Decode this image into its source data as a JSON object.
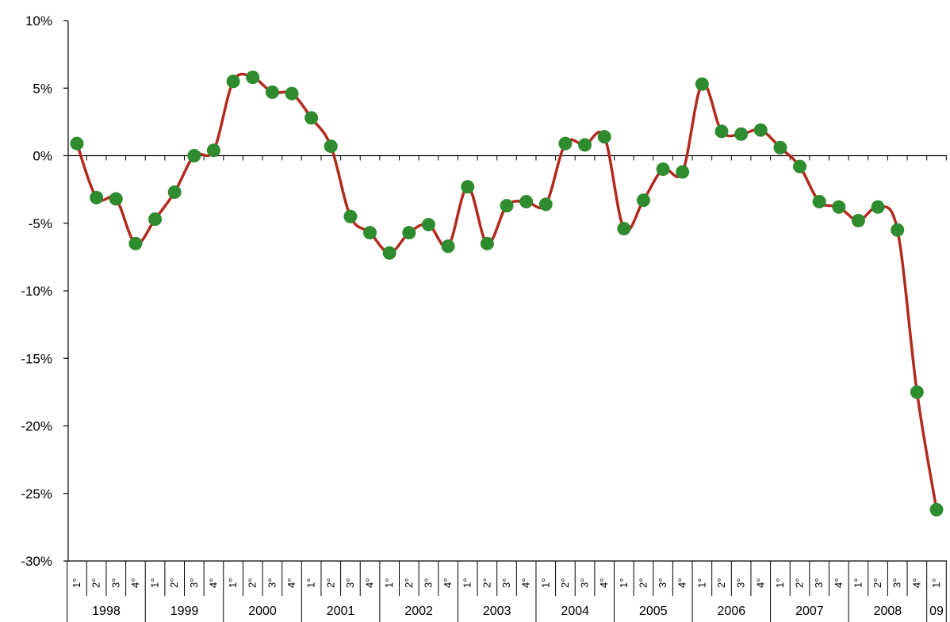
{
  "chart_data": {
    "type": "line",
    "title": "",
    "xlabel": "",
    "ylabel": "",
    "ylim": [
      -30,
      10
    ],
    "y_ticks": [
      "10%",
      "5%",
      "0%",
      "-5%",
      "-10%",
      "-15%",
      "-20%",
      "-25%",
      "-30%"
    ],
    "y_tick_values": [
      10,
      5,
      0,
      -5,
      -10,
      -15,
      -20,
      -25,
      -30
    ],
    "quarter_labels": [
      "1°",
      "2°",
      "3°",
      "4°"
    ],
    "years": [
      "1998",
      "1999",
      "2000",
      "2001",
      "2002",
      "2003",
      "2004",
      "2005",
      "2006",
      "2007",
      "2008",
      "09"
    ],
    "grid": false,
    "legend": "none",
    "colors": {
      "line": "#b22a1e",
      "marker": "#2e8b2e",
      "axis": "#000000"
    },
    "series": [
      {
        "values": [
          0.9,
          -3.1,
          -3.2,
          -6.5,
          -4.7,
          -2.7,
          0.0,
          0.4,
          5.5,
          5.8,
          4.7,
          4.6,
          2.8,
          0.7,
          -4.5,
          -5.7,
          -7.2,
          -5.7,
          -5.1,
          -6.7,
          -2.3,
          -6.5,
          -3.7,
          -3.4,
          -3.6,
          0.9,
          0.8,
          1.4,
          -5.4,
          -3.3,
          -1.0,
          -1.2,
          5.3,
          1.8,
          1.6,
          1.9,
          0.6,
          -0.8,
          -3.4,
          -3.8,
          -4.8,
          -3.8,
          -5.5,
          -17.5,
          -26.2
        ]
      }
    ]
  }
}
